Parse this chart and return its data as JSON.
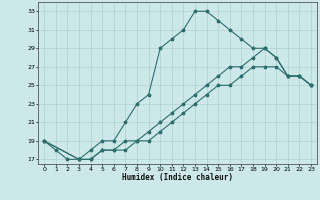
{
  "xlabel": "Humidex (Indice chaleur)",
  "background_color": "#cce8e8",
  "grid_color": "#b8d8d8",
  "line_color": "#2e6e6e",
  "xlim": [
    -0.5,
    23.5
  ],
  "ylim": [
    16.5,
    34.0
  ],
  "yticks": [
    17,
    19,
    21,
    23,
    25,
    27,
    29,
    31,
    33
  ],
  "xticks": [
    0,
    1,
    2,
    3,
    4,
    5,
    6,
    7,
    8,
    9,
    10,
    11,
    12,
    13,
    14,
    15,
    16,
    17,
    18,
    19,
    20,
    21,
    22,
    23
  ],
  "line1_x": [
    0,
    1,
    2,
    3,
    4,
    5,
    6,
    7,
    8,
    9,
    10,
    11,
    12,
    13,
    14,
    15,
    16,
    17,
    18,
    19,
    20,
    21,
    22,
    23
  ],
  "line1_y": [
    19,
    18,
    17,
    17,
    18,
    19,
    19,
    21,
    23,
    24,
    29,
    30,
    31,
    33,
    33,
    32,
    31,
    30,
    29,
    29,
    28,
    26,
    26,
    25
  ],
  "line2_x": [
    0,
    3,
    4,
    5,
    6,
    7,
    8,
    9,
    10,
    11,
    12,
    13,
    14,
    15,
    16,
    17,
    18,
    19,
    20,
    21,
    22,
    23
  ],
  "line2_y": [
    19,
    17,
    17,
    18,
    18,
    19,
    19,
    20,
    21,
    22,
    23,
    24,
    25,
    26,
    27,
    27,
    28,
    29,
    28,
    26,
    26,
    25
  ],
  "line3_x": [
    0,
    3,
    4,
    5,
    6,
    7,
    8,
    9,
    10,
    11,
    12,
    13,
    14,
    15,
    16,
    17,
    18,
    19,
    20,
    21,
    22,
    23
  ],
  "line3_y": [
    19,
    17,
    17,
    18,
    18,
    18,
    19,
    19,
    20,
    21,
    22,
    23,
    24,
    25,
    25,
    26,
    27,
    27,
    27,
    26,
    26,
    25
  ]
}
